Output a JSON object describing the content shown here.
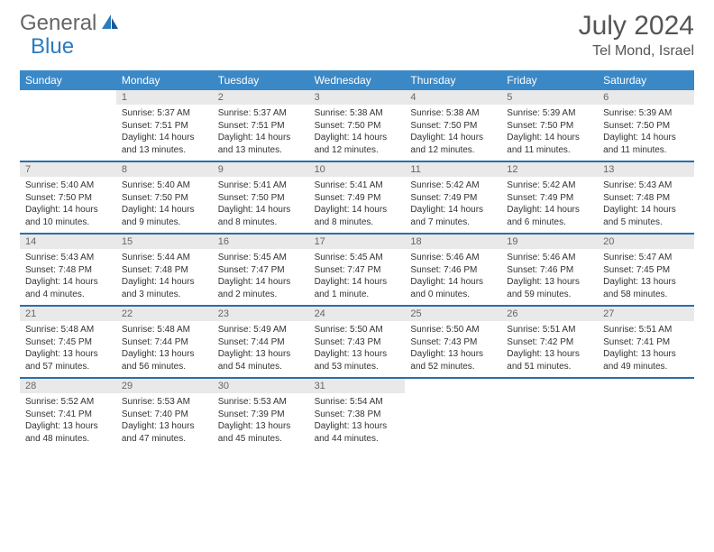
{
  "brand": {
    "part1": "General",
    "part2": "Blue"
  },
  "title": "July 2024",
  "location": "Tel Mond, Israel",
  "theme": {
    "header_bg": "#3b88c6",
    "header_text": "#ffffff",
    "week_divider": "#2b6fa8",
    "daynum_bg": "#e9e9e9",
    "text_color": "#333333",
    "title_color": "#555555",
    "logo_gray": "#666666",
    "logo_blue": "#2b7bbf",
    "background": "#ffffff"
  },
  "day_names": [
    "Sunday",
    "Monday",
    "Tuesday",
    "Wednesday",
    "Thursday",
    "Friday",
    "Saturday"
  ],
  "weeks": [
    [
      null,
      {
        "n": "1",
        "sr": "5:37 AM",
        "ss": "7:51 PM",
        "dl": "14 hours and 13 minutes."
      },
      {
        "n": "2",
        "sr": "5:37 AM",
        "ss": "7:51 PM",
        "dl": "14 hours and 13 minutes."
      },
      {
        "n": "3",
        "sr": "5:38 AM",
        "ss": "7:50 PM",
        "dl": "14 hours and 12 minutes."
      },
      {
        "n": "4",
        "sr": "5:38 AM",
        "ss": "7:50 PM",
        "dl": "14 hours and 12 minutes."
      },
      {
        "n": "5",
        "sr": "5:39 AM",
        "ss": "7:50 PM",
        "dl": "14 hours and 11 minutes."
      },
      {
        "n": "6",
        "sr": "5:39 AM",
        "ss": "7:50 PM",
        "dl": "14 hours and 11 minutes."
      }
    ],
    [
      {
        "n": "7",
        "sr": "5:40 AM",
        "ss": "7:50 PM",
        "dl": "14 hours and 10 minutes."
      },
      {
        "n": "8",
        "sr": "5:40 AM",
        "ss": "7:50 PM",
        "dl": "14 hours and 9 minutes."
      },
      {
        "n": "9",
        "sr": "5:41 AM",
        "ss": "7:50 PM",
        "dl": "14 hours and 8 minutes."
      },
      {
        "n": "10",
        "sr": "5:41 AM",
        "ss": "7:49 PM",
        "dl": "14 hours and 8 minutes."
      },
      {
        "n": "11",
        "sr": "5:42 AM",
        "ss": "7:49 PM",
        "dl": "14 hours and 7 minutes."
      },
      {
        "n": "12",
        "sr": "5:42 AM",
        "ss": "7:49 PM",
        "dl": "14 hours and 6 minutes."
      },
      {
        "n": "13",
        "sr": "5:43 AM",
        "ss": "7:48 PM",
        "dl": "14 hours and 5 minutes."
      }
    ],
    [
      {
        "n": "14",
        "sr": "5:43 AM",
        "ss": "7:48 PM",
        "dl": "14 hours and 4 minutes."
      },
      {
        "n": "15",
        "sr": "5:44 AM",
        "ss": "7:48 PM",
        "dl": "14 hours and 3 minutes."
      },
      {
        "n": "16",
        "sr": "5:45 AM",
        "ss": "7:47 PM",
        "dl": "14 hours and 2 minutes."
      },
      {
        "n": "17",
        "sr": "5:45 AM",
        "ss": "7:47 PM",
        "dl": "14 hours and 1 minute."
      },
      {
        "n": "18",
        "sr": "5:46 AM",
        "ss": "7:46 PM",
        "dl": "14 hours and 0 minutes."
      },
      {
        "n": "19",
        "sr": "5:46 AM",
        "ss": "7:46 PM",
        "dl": "13 hours and 59 minutes."
      },
      {
        "n": "20",
        "sr": "5:47 AM",
        "ss": "7:45 PM",
        "dl": "13 hours and 58 minutes."
      }
    ],
    [
      {
        "n": "21",
        "sr": "5:48 AM",
        "ss": "7:45 PM",
        "dl": "13 hours and 57 minutes."
      },
      {
        "n": "22",
        "sr": "5:48 AM",
        "ss": "7:44 PM",
        "dl": "13 hours and 56 minutes."
      },
      {
        "n": "23",
        "sr": "5:49 AM",
        "ss": "7:44 PM",
        "dl": "13 hours and 54 minutes."
      },
      {
        "n": "24",
        "sr": "5:50 AM",
        "ss": "7:43 PM",
        "dl": "13 hours and 53 minutes."
      },
      {
        "n": "25",
        "sr": "5:50 AM",
        "ss": "7:43 PM",
        "dl": "13 hours and 52 minutes."
      },
      {
        "n": "26",
        "sr": "5:51 AM",
        "ss": "7:42 PM",
        "dl": "13 hours and 51 minutes."
      },
      {
        "n": "27",
        "sr": "5:51 AM",
        "ss": "7:41 PM",
        "dl": "13 hours and 49 minutes."
      }
    ],
    [
      {
        "n": "28",
        "sr": "5:52 AM",
        "ss": "7:41 PM",
        "dl": "13 hours and 48 minutes."
      },
      {
        "n": "29",
        "sr": "5:53 AM",
        "ss": "7:40 PM",
        "dl": "13 hours and 47 minutes."
      },
      {
        "n": "30",
        "sr": "5:53 AM",
        "ss": "7:39 PM",
        "dl": "13 hours and 45 minutes."
      },
      {
        "n": "31",
        "sr": "5:54 AM",
        "ss": "7:38 PM",
        "dl": "13 hours and 44 minutes."
      },
      null,
      null,
      null
    ]
  ],
  "labels": {
    "sunrise": "Sunrise:",
    "sunset": "Sunset:",
    "daylight": "Daylight:"
  }
}
